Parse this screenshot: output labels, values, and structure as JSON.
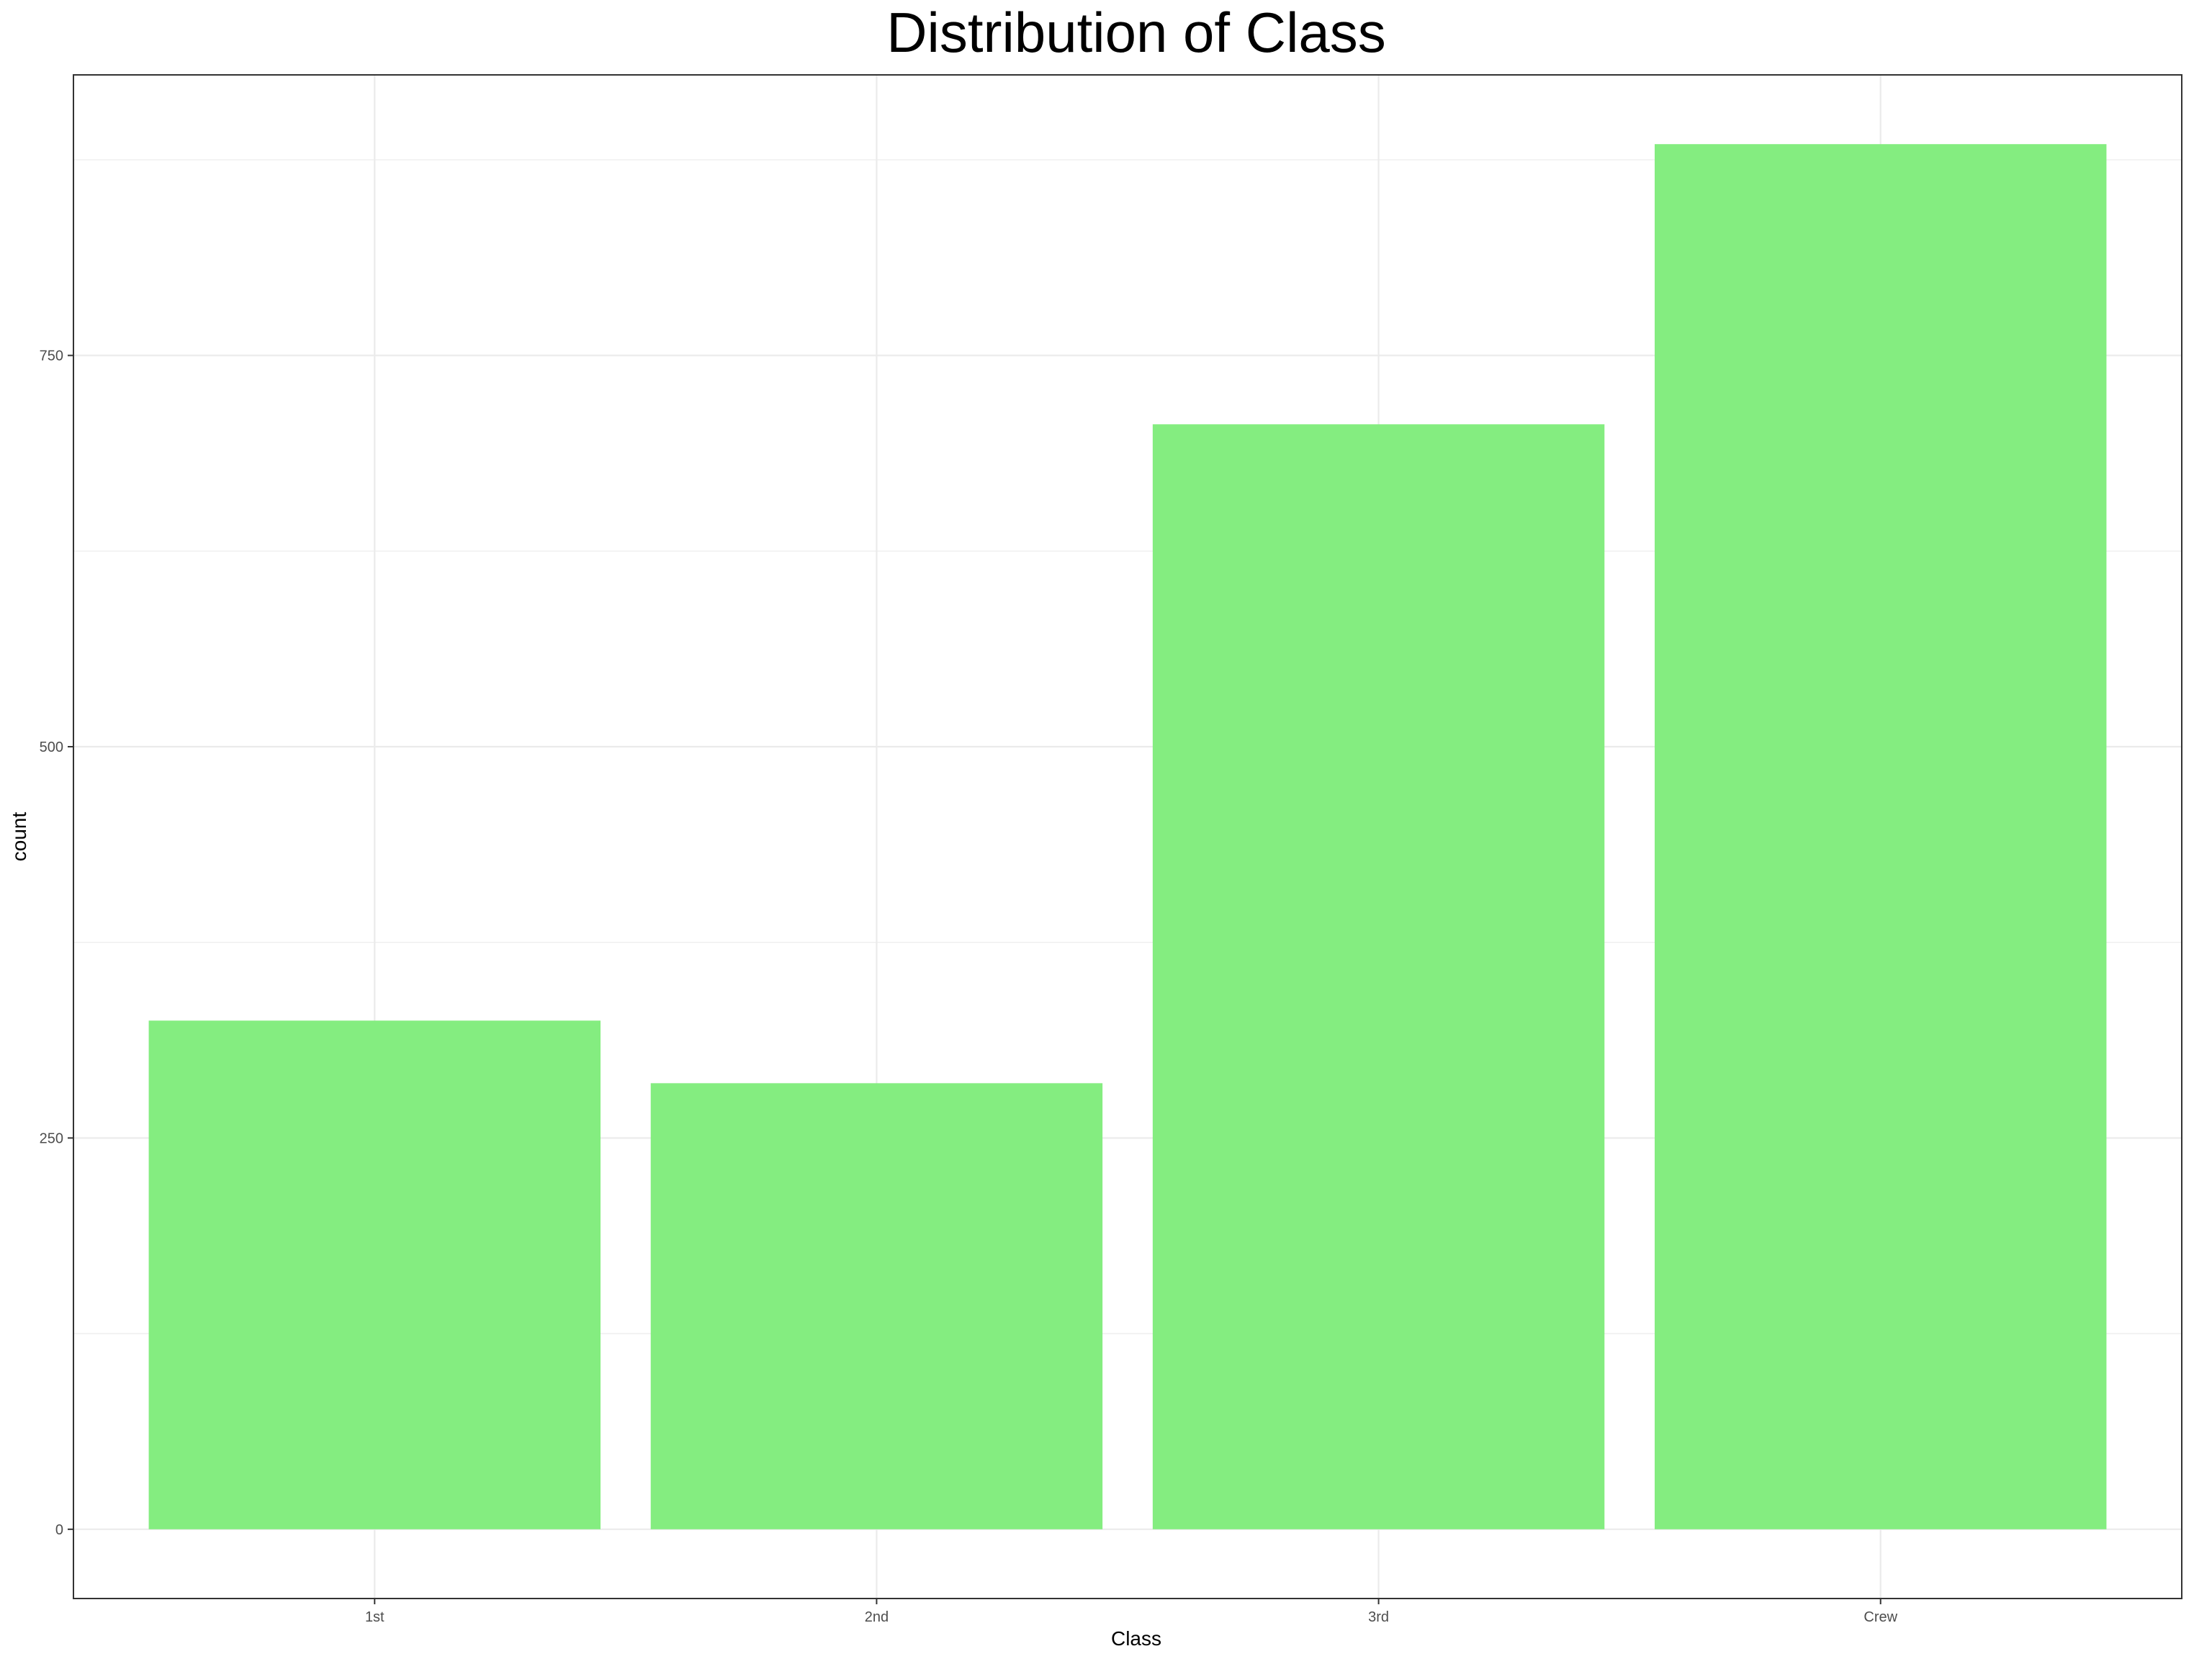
{
  "chart_data": {
    "type": "bar",
    "title": "Distribution of Class",
    "xlabel": "Class",
    "ylabel": "count",
    "categories": [
      "1st",
      "2nd",
      "3rd",
      "Crew"
    ],
    "values": [
      325,
      285,
      706,
      885
    ],
    "ylim": [
      -44.25,
      929.25
    ],
    "yticks": [
      0,
      250,
      500,
      750
    ],
    "ytick_labels": [
      "0",
      "250",
      "500",
      "750"
    ],
    "grid": true,
    "bar_color": "#84ED80",
    "grid_color": "#EBEBEB",
    "panel_border_color": "#333333",
    "background": "#FFFFFF"
  }
}
